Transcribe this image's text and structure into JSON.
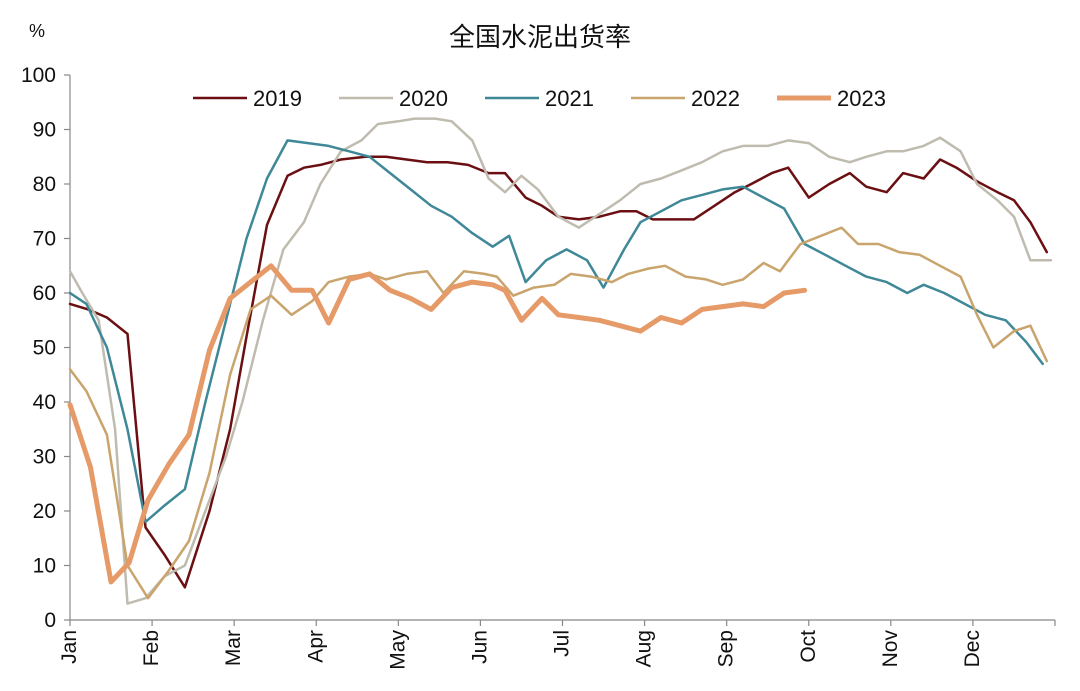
{
  "chart_data": {
    "type": "line",
    "title": "全国水泥出货率",
    "unit": "%",
    "ylim": [
      0,
      100
    ],
    "yticks": [
      0,
      10,
      20,
      30,
      40,
      50,
      60,
      70,
      80,
      90,
      100
    ],
    "months": [
      "Jan",
      "Feb",
      "Mar",
      "Apr",
      "May",
      "Jun",
      "Jul",
      "Aug",
      "Sep",
      "Oct",
      "Nov",
      "Dec"
    ],
    "legend_position": "top",
    "grid": false,
    "series": [
      {
        "name": "2019",
        "color": "#6b0f12",
        "width": 2.5,
        "points": [
          [
            0.0,
            58
          ],
          [
            0.22,
            57
          ],
          [
            0.45,
            55.5
          ],
          [
            0.7,
            52.5
          ],
          [
            0.92,
            17
          ],
          [
            1.15,
            12
          ],
          [
            1.4,
            6
          ],
          [
            1.7,
            20
          ],
          [
            1.95,
            35
          ],
          [
            2.15,
            52
          ],
          [
            2.4,
            72.5
          ],
          [
            2.65,
            81.5
          ],
          [
            2.85,
            83
          ],
          [
            3.05,
            83.5
          ],
          [
            3.3,
            84.5
          ],
          [
            3.6,
            85
          ],
          [
            3.85,
            85
          ],
          [
            4.1,
            84.5
          ],
          [
            4.35,
            84
          ],
          [
            4.6,
            84
          ],
          [
            4.85,
            83.5
          ],
          [
            5.1,
            82
          ],
          [
            5.3,
            82
          ],
          [
            5.55,
            77.5
          ],
          [
            5.75,
            76
          ],
          [
            5.95,
            74
          ],
          [
            6.2,
            73.5
          ],
          [
            6.45,
            74
          ],
          [
            6.7,
            75
          ],
          [
            6.9,
            75
          ],
          [
            7.1,
            73.5
          ],
          [
            7.35,
            73.5
          ],
          [
            7.6,
            73.5
          ],
          [
            7.85,
            76
          ],
          [
            8.1,
            78.5
          ],
          [
            8.3,
            80
          ],
          [
            8.55,
            82
          ],
          [
            8.75,
            83
          ],
          [
            9.0,
            77.5
          ],
          [
            9.25,
            80
          ],
          [
            9.5,
            82
          ],
          [
            9.7,
            79.5
          ],
          [
            9.95,
            78.5
          ],
          [
            10.15,
            82
          ],
          [
            10.4,
            81
          ],
          [
            10.6,
            84.5
          ],
          [
            10.8,
            83
          ],
          [
            11.05,
            80.5
          ],
          [
            11.3,
            78.5
          ],
          [
            11.5,
            77
          ],
          [
            11.7,
            73
          ],
          [
            11.9,
            67.5
          ]
        ]
      },
      {
        "name": "2020",
        "color": "#bfbcaf",
        "width": 2.5,
        "points": [
          [
            0.0,
            64
          ],
          [
            0.15,
            60
          ],
          [
            0.35,
            55
          ],
          [
            0.55,
            35
          ],
          [
            0.7,
            3
          ],
          [
            0.92,
            4
          ],
          [
            1.15,
            8
          ],
          [
            1.4,
            10
          ],
          [
            1.65,
            20
          ],
          [
            1.9,
            30
          ],
          [
            2.1,
            40
          ],
          [
            2.35,
            55
          ],
          [
            2.6,
            68
          ],
          [
            2.85,
            73
          ],
          [
            3.05,
            80
          ],
          [
            3.3,
            86
          ],
          [
            3.55,
            88
          ],
          [
            3.75,
            91
          ],
          [
            4.0,
            91.5
          ],
          [
            4.2,
            92
          ],
          [
            4.45,
            92
          ],
          [
            4.65,
            91.5
          ],
          [
            4.9,
            88
          ],
          [
            5.1,
            81
          ],
          [
            5.3,
            78.5
          ],
          [
            5.5,
            81.5
          ],
          [
            5.7,
            79
          ],
          [
            5.95,
            74
          ],
          [
            6.2,
            72
          ],
          [
            6.45,
            74.5
          ],
          [
            6.7,
            77
          ],
          [
            6.95,
            80
          ],
          [
            7.2,
            81
          ],
          [
            7.45,
            82.5
          ],
          [
            7.7,
            84
          ],
          [
            7.95,
            86
          ],
          [
            8.2,
            87
          ],
          [
            8.5,
            87
          ],
          [
            8.75,
            88
          ],
          [
            9.0,
            87.5
          ],
          [
            9.25,
            85
          ],
          [
            9.5,
            84
          ],
          [
            9.7,
            85
          ],
          [
            9.95,
            86
          ],
          [
            10.15,
            86
          ],
          [
            10.4,
            87
          ],
          [
            10.6,
            88.5
          ],
          [
            10.85,
            86
          ],
          [
            11.05,
            80
          ],
          [
            11.3,
            77
          ],
          [
            11.5,
            74
          ],
          [
            11.7,
            66
          ],
          [
            11.95,
            66
          ]
        ]
      },
      {
        "name": "2021",
        "color": "#3f8898",
        "width": 2.5,
        "points": [
          [
            0.0,
            60
          ],
          [
            0.2,
            58
          ],
          [
            0.45,
            50
          ],
          [
            0.7,
            35
          ],
          [
            0.92,
            18
          ],
          [
            1.15,
            21
          ],
          [
            1.4,
            24
          ],
          [
            1.65,
            40
          ],
          [
            1.9,
            55
          ],
          [
            2.15,
            70
          ],
          [
            2.4,
            81
          ],
          [
            2.65,
            88
          ],
          [
            2.9,
            87.5
          ],
          [
            3.15,
            87
          ],
          [
            3.4,
            86
          ],
          [
            3.65,
            85
          ],
          [
            3.9,
            82
          ],
          [
            4.15,
            79
          ],
          [
            4.4,
            76
          ],
          [
            4.65,
            74
          ],
          [
            4.9,
            71
          ],
          [
            5.15,
            68.5
          ],
          [
            5.35,
            70.5
          ],
          [
            5.55,
            62
          ],
          [
            5.8,
            66
          ],
          [
            6.05,
            68
          ],
          [
            6.3,
            66
          ],
          [
            6.5,
            61
          ],
          [
            6.75,
            68
          ],
          [
            6.95,
            73
          ],
          [
            7.2,
            75
          ],
          [
            7.45,
            77
          ],
          [
            7.7,
            78
          ],
          [
            7.95,
            79
          ],
          [
            8.2,
            79.5
          ],
          [
            8.45,
            77.5
          ],
          [
            8.7,
            75.5
          ],
          [
            8.95,
            69
          ],
          [
            9.2,
            67
          ],
          [
            9.45,
            65
          ],
          [
            9.7,
            63
          ],
          [
            9.95,
            62
          ],
          [
            10.2,
            60
          ],
          [
            10.4,
            61.5
          ],
          [
            10.65,
            60
          ],
          [
            10.9,
            58
          ],
          [
            11.15,
            56
          ],
          [
            11.4,
            55
          ],
          [
            11.65,
            51
          ],
          [
            11.85,
            47
          ]
        ]
      },
      {
        "name": "2022",
        "color": "#c9a46d",
        "width": 2.5,
        "points": [
          [
            0.0,
            46
          ],
          [
            0.2,
            42
          ],
          [
            0.45,
            34
          ],
          [
            0.7,
            10
          ],
          [
            0.95,
            4
          ],
          [
            1.2,
            9
          ],
          [
            1.45,
            14.5
          ],
          [
            1.7,
            27
          ],
          [
            1.95,
            45
          ],
          [
            2.2,
            57
          ],
          [
            2.45,
            59.5
          ],
          [
            2.7,
            56
          ],
          [
            2.95,
            58.5
          ],
          [
            3.15,
            62
          ],
          [
            3.4,
            63
          ],
          [
            3.65,
            63.5
          ],
          [
            3.85,
            62.5
          ],
          [
            4.1,
            63.5
          ],
          [
            4.35,
            64
          ],
          [
            4.55,
            60
          ],
          [
            4.8,
            64
          ],
          [
            5.05,
            63.5
          ],
          [
            5.2,
            63
          ],
          [
            5.4,
            59.5
          ],
          [
            5.65,
            61
          ],
          [
            5.9,
            61.5
          ],
          [
            6.1,
            63.5
          ],
          [
            6.35,
            63
          ],
          [
            6.6,
            62
          ],
          [
            6.8,
            63.5
          ],
          [
            7.05,
            64.5
          ],
          [
            7.25,
            65
          ],
          [
            7.5,
            63
          ],
          [
            7.75,
            62.5
          ],
          [
            7.95,
            61.5
          ],
          [
            8.2,
            62.5
          ],
          [
            8.45,
            65.5
          ],
          [
            8.65,
            64
          ],
          [
            8.9,
            69
          ],
          [
            9.15,
            70.5
          ],
          [
            9.4,
            72
          ],
          [
            9.6,
            69
          ],
          [
            9.85,
            69
          ],
          [
            10.1,
            67.5
          ],
          [
            10.35,
            67
          ],
          [
            10.6,
            65
          ],
          [
            10.85,
            63
          ],
          [
            11.05,
            56
          ],
          [
            11.25,
            50
          ],
          [
            11.5,
            53
          ],
          [
            11.7,
            54
          ],
          [
            11.9,
            47.5
          ]
        ]
      },
      {
        "name": "2023",
        "color": "#e59a68",
        "width": 5,
        "points": [
          [
            0.0,
            39.5
          ],
          [
            0.25,
            28
          ],
          [
            0.5,
            7
          ],
          [
            0.72,
            10.5
          ],
          [
            0.95,
            22
          ],
          [
            1.2,
            28.5
          ],
          [
            1.45,
            34
          ],
          [
            1.7,
            49.5
          ],
          [
            1.95,
            59
          ],
          [
            2.2,
            62
          ],
          [
            2.45,
            65
          ],
          [
            2.7,
            60.5
          ],
          [
            2.95,
            60.5
          ],
          [
            3.15,
            54.5
          ],
          [
            3.4,
            62.5
          ],
          [
            3.65,
            63.5
          ],
          [
            3.9,
            60.5
          ],
          [
            4.15,
            59
          ],
          [
            4.4,
            57
          ],
          [
            4.65,
            61
          ],
          [
            4.9,
            62
          ],
          [
            5.15,
            61.5
          ],
          [
            5.3,
            60.5
          ],
          [
            5.5,
            55
          ],
          [
            5.75,
            59
          ],
          [
            5.95,
            56
          ],
          [
            6.2,
            55.5
          ],
          [
            6.45,
            55
          ],
          [
            6.7,
            54
          ],
          [
            6.95,
            53
          ],
          [
            7.2,
            55.5
          ],
          [
            7.45,
            54.5
          ],
          [
            7.7,
            57
          ],
          [
            7.95,
            57.5
          ],
          [
            8.2,
            58
          ],
          [
            8.45,
            57.5
          ],
          [
            8.7,
            60
          ],
          [
            8.95,
            60.5
          ]
        ]
      }
    ]
  }
}
